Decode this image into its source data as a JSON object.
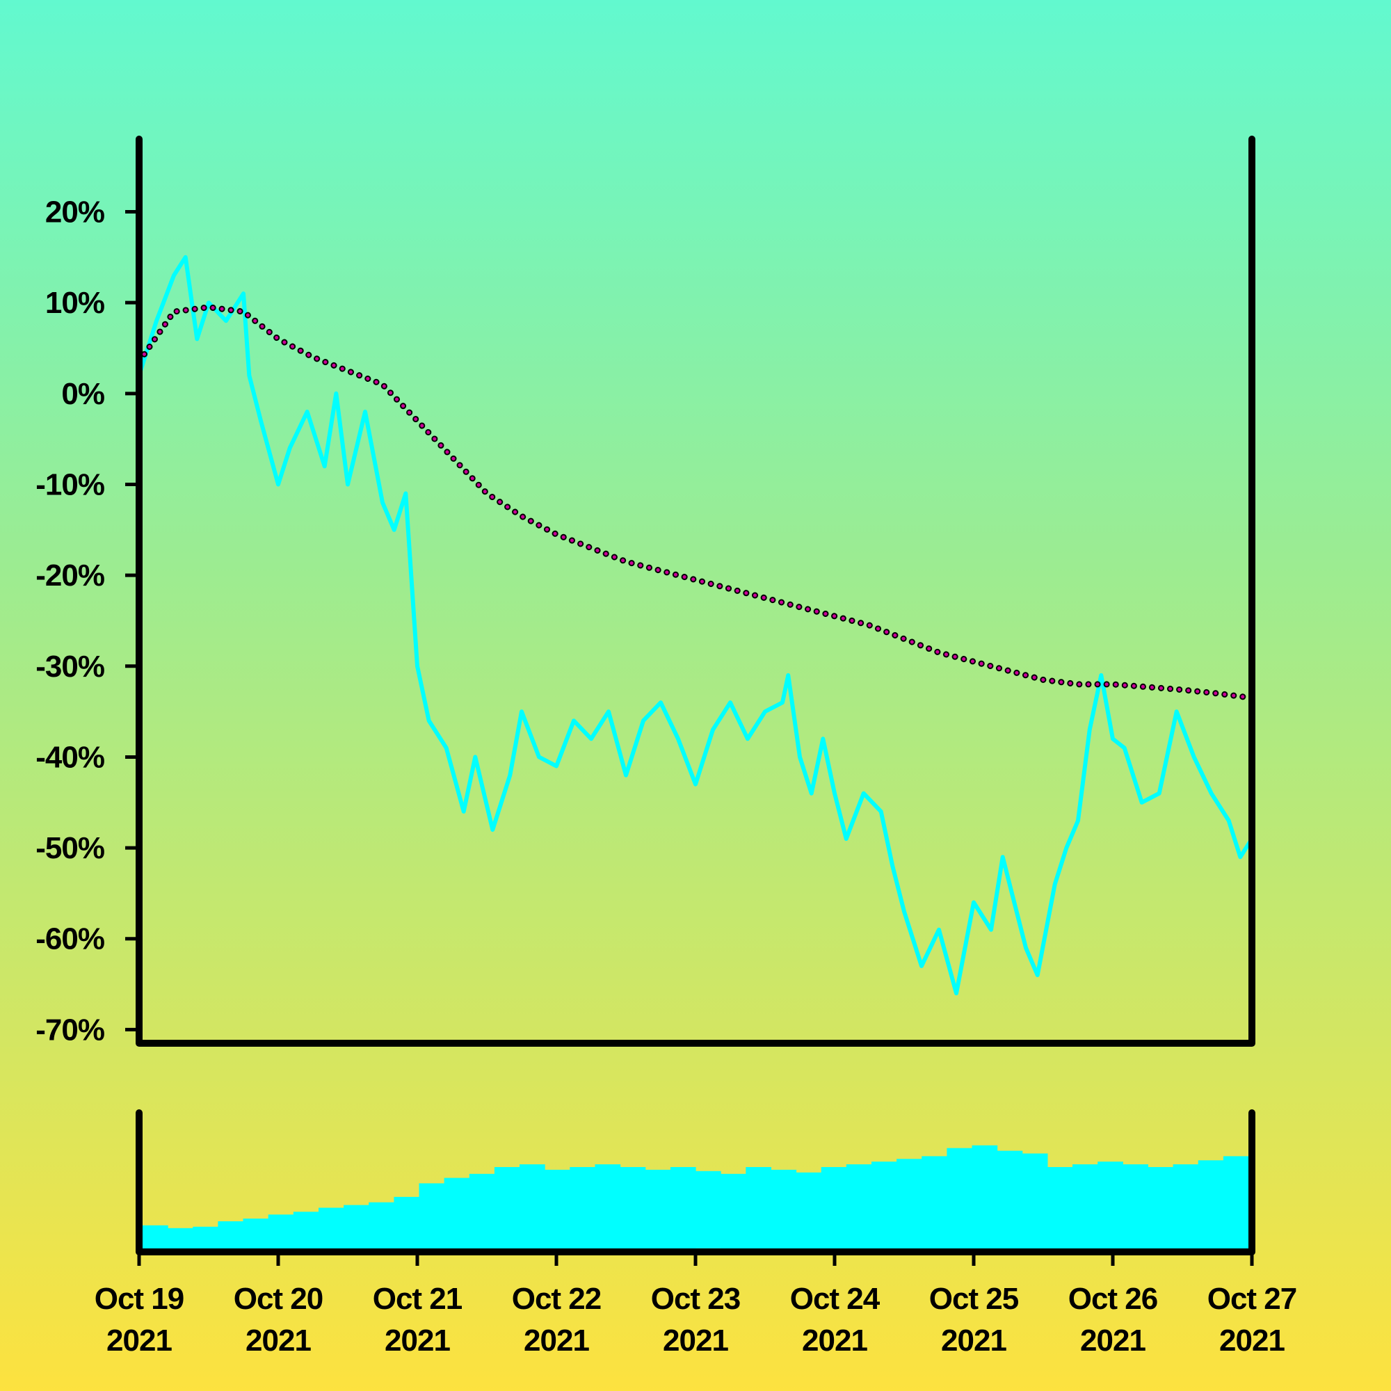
{
  "chart_data": {
    "type": "line",
    "y_axis": {
      "ticks": [
        "20%",
        "10%",
        "0%",
        "-10%",
        "-20%",
        "-30%",
        "-40%",
        "-50%",
        "-60%",
        "-70%"
      ],
      "tick_values": [
        20,
        10,
        0,
        -10,
        -20,
        -30,
        -40,
        -50,
        -60,
        -70
      ],
      "ylim": [
        -71.5,
        28
      ]
    },
    "x_axis": {
      "ticks": [
        {
          "line1": "Oct 19",
          "line2": "2021",
          "date": "2021-10-19"
        },
        {
          "line1": "Oct 20",
          "line2": "2021",
          "date": "2021-10-20"
        },
        {
          "line1": "Oct 21",
          "line2": "2021",
          "date": "2021-10-21"
        },
        {
          "line1": "Oct 22",
          "line2": "2021",
          "date": "2021-10-22"
        },
        {
          "line1": "Oct 23",
          "line2": "2021",
          "date": "2021-10-23"
        },
        {
          "line1": "Oct 24",
          "line2": "2021",
          "date": "2021-10-24"
        },
        {
          "line1": "Oct 25",
          "line2": "2021",
          "date": "2021-10-25"
        },
        {
          "line1": "Oct 26",
          "line2": "2021",
          "date": "2021-10-26"
        },
        {
          "line1": "Oct 27",
          "line2": "2021",
          "date": "2021-10-27"
        }
      ],
      "xlim": [
        "2021-10-19",
        "2021-10-27"
      ]
    },
    "grid": false,
    "legend": "none",
    "series": [
      {
        "style": "solid",
        "color": "#00ffff",
        "points": [
          [
            "2021-10-19 00:00",
            2
          ],
          [
            "2021-10-19 03:00",
            8
          ],
          [
            "2021-10-19 06:00",
            13
          ],
          [
            "2021-10-19 08:00",
            15
          ],
          [
            "2021-10-19 10:00",
            6
          ],
          [
            "2021-10-19 12:00",
            10
          ],
          [
            "2021-10-19 15:00",
            8
          ],
          [
            "2021-10-19 18:00",
            11
          ],
          [
            "2021-10-19 19:00",
            2
          ],
          [
            "2021-10-19 21:00",
            -3
          ],
          [
            "2021-10-20 00:00",
            -10
          ],
          [
            "2021-10-20 02:00",
            -6
          ],
          [
            "2021-10-20 05:00",
            -2
          ],
          [
            "2021-10-20 08:00",
            -8
          ],
          [
            "2021-10-20 10:00",
            0
          ],
          [
            "2021-10-20 12:00",
            -10
          ],
          [
            "2021-10-20 15:00",
            -2
          ],
          [
            "2021-10-20 18:00",
            -12
          ],
          [
            "2021-10-20 20:00",
            -15
          ],
          [
            "2021-10-20 22:00",
            -11
          ],
          [
            "2021-10-21 00:00",
            -30
          ],
          [
            "2021-10-21 02:00",
            -36
          ],
          [
            "2021-10-21 05:00",
            -39
          ],
          [
            "2021-10-21 08:00",
            -46
          ],
          [
            "2021-10-21 10:00",
            -40
          ],
          [
            "2021-10-21 13:00",
            -48
          ],
          [
            "2021-10-21 16:00",
            -42
          ],
          [
            "2021-10-21 18:00",
            -35
          ],
          [
            "2021-10-21 21:00",
            -40
          ],
          [
            "2021-10-22 00:00",
            -41
          ],
          [
            "2021-10-22 03:00",
            -36
          ],
          [
            "2021-10-22 06:00",
            -38
          ],
          [
            "2021-10-22 09:00",
            -35
          ],
          [
            "2021-10-22 12:00",
            -42
          ],
          [
            "2021-10-22 15:00",
            -36
          ],
          [
            "2021-10-22 18:00",
            -34
          ],
          [
            "2021-10-22 21:00",
            -38
          ],
          [
            "2021-10-23 00:00",
            -43
          ],
          [
            "2021-10-23 03:00",
            -37
          ],
          [
            "2021-10-23 06:00",
            -34
          ],
          [
            "2021-10-23 09:00",
            -38
          ],
          [
            "2021-10-23 12:00",
            -35
          ],
          [
            "2021-10-23 15:00",
            -34
          ],
          [
            "2021-10-23 16:00",
            -31
          ],
          [
            "2021-10-23 18:00",
            -40
          ],
          [
            "2021-10-23 20:00",
            -44
          ],
          [
            "2021-10-23 22:00",
            -38
          ],
          [
            "2021-10-24 00:00",
            -44
          ],
          [
            "2021-10-24 02:00",
            -49
          ],
          [
            "2021-10-24 05:00",
            -44
          ],
          [
            "2021-10-24 08:00",
            -46
          ],
          [
            "2021-10-24 10:00",
            -52
          ],
          [
            "2021-10-24 12:00",
            -57
          ],
          [
            "2021-10-24 15:00",
            -63
          ],
          [
            "2021-10-24 18:00",
            -59
          ],
          [
            "2021-10-24 21:00",
            -66
          ],
          [
            "2021-10-25 00:00",
            -56
          ],
          [
            "2021-10-25 03:00",
            -59
          ],
          [
            "2021-10-25 05:00",
            -51
          ],
          [
            "2021-10-25 07:00",
            -56
          ],
          [
            "2021-10-25 09:00",
            -61
          ],
          [
            "2021-10-25 11:00",
            -64
          ],
          [
            "2021-10-25 14:00",
            -54
          ],
          [
            "2021-10-25 16:00",
            -50
          ],
          [
            "2021-10-25 18:00",
            -47
          ],
          [
            "2021-10-25 20:00",
            -37
          ],
          [
            "2021-10-25 22:00",
            -31
          ],
          [
            "2021-10-26 00:00",
            -38
          ],
          [
            "2021-10-26 02:00",
            -39
          ],
          [
            "2021-10-26 05:00",
            -45
          ],
          [
            "2021-10-26 08:00",
            -44
          ],
          [
            "2021-10-26 11:00",
            -35
          ],
          [
            "2021-10-26 14:00",
            -40
          ],
          [
            "2021-10-26 17:00",
            -44
          ],
          [
            "2021-10-26 20:00",
            -47
          ],
          [
            "2021-10-26 22:00",
            -51
          ],
          [
            "2021-10-27 00:00",
            -49
          ]
        ]
      },
      {
        "style": "dotted",
        "color": "#cc0099",
        "points": [
          [
            "2021-10-19 00:00",
            3.5
          ],
          [
            "2021-10-19 06:00",
            9
          ],
          [
            "2021-10-19 12:00",
            9.5
          ],
          [
            "2021-10-19 18:00",
            9
          ],
          [
            "2021-10-20 00:00",
            6
          ],
          [
            "2021-10-20 06:00",
            4
          ],
          [
            "2021-10-20 12:00",
            2.5
          ],
          [
            "2021-10-20 18:00",
            1
          ],
          [
            "2021-10-21 00:00",
            -3
          ],
          [
            "2021-10-21 06:00",
            -7
          ],
          [
            "2021-10-21 12:00",
            -11
          ],
          [
            "2021-10-21 18:00",
            -13.5
          ],
          [
            "2021-10-22 00:00",
            -15.5
          ],
          [
            "2021-10-22 06:00",
            -17
          ],
          [
            "2021-10-22 12:00",
            -18.5
          ],
          [
            "2021-10-22 18:00",
            -19.5
          ],
          [
            "2021-10-23 00:00",
            -20.5
          ],
          [
            "2021-10-23 06:00",
            -21.5
          ],
          [
            "2021-10-23 12:00",
            -22.5
          ],
          [
            "2021-10-23 18:00",
            -23.5
          ],
          [
            "2021-10-24 00:00",
            -24.5
          ],
          [
            "2021-10-24 06:00",
            -25.5
          ],
          [
            "2021-10-24 12:00",
            -27
          ],
          [
            "2021-10-24 18:00",
            -28.5
          ],
          [
            "2021-10-25 00:00",
            -29.5
          ],
          [
            "2021-10-25 06:00",
            -30.5
          ],
          [
            "2021-10-25 12:00",
            -31.5
          ],
          [
            "2021-10-25 18:00",
            -32
          ],
          [
            "2021-10-26 00:00",
            -32
          ],
          [
            "2021-10-26 06:00",
            -32.3
          ],
          [
            "2021-10-26 12:00",
            -32.6
          ],
          [
            "2021-10-26 18:00",
            -33
          ],
          [
            "2021-10-27 00:00",
            -33.5
          ]
        ]
      }
    ],
    "volume": {
      "type": "bar",
      "color": "#00ffff",
      "relative_values": [
        0.17,
        0.15,
        0.16,
        0.2,
        0.22,
        0.25,
        0.27,
        0.3,
        0.32,
        0.34,
        0.38,
        0.48,
        0.52,
        0.55,
        0.6,
        0.62,
        0.58,
        0.6,
        0.62,
        0.6,
        0.58,
        0.6,
        0.57,
        0.55,
        0.6,
        0.58,
        0.56,
        0.6,
        0.62,
        0.64,
        0.66,
        0.68,
        0.74,
        0.76,
        0.72,
        0.7,
        0.6,
        0.62,
        0.64,
        0.62,
        0.6,
        0.62,
        0.65,
        0.68
      ]
    }
  }
}
